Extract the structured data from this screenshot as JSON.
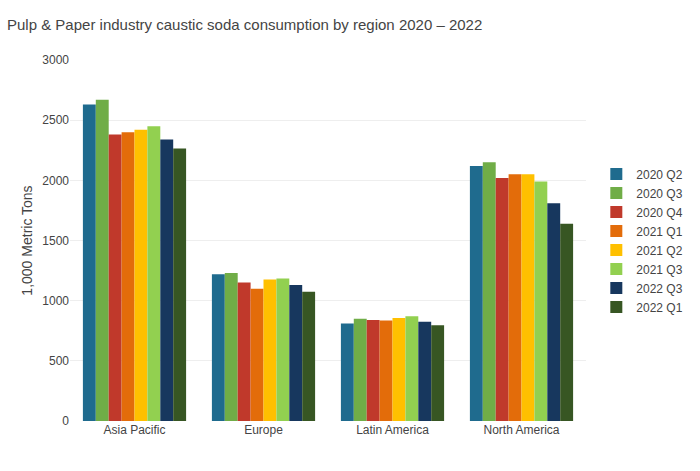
{
  "chart_data": {
    "type": "bar",
    "title": "Pulp & Paper industry caustic soda consumption by region 2020 – 2022",
    "ylabel": "1,000 Metric Tons",
    "categories": [
      "Asia Pacific",
      "Europe",
      "Latin America",
      "North America"
    ],
    "series": [
      {
        "name": "2020 Q2",
        "color": "#1f6b8e",
        "values": [
          2630,
          1220,
          810,
          2120
        ]
      },
      {
        "name": "2020 Q3",
        "color": "#70ad47",
        "values": [
          2670,
          1230,
          850,
          2150
        ]
      },
      {
        "name": "2020 Q4",
        "color": "#c0392b",
        "values": [
          2380,
          1150,
          840,
          2020
        ]
      },
      {
        "name": "2021 Q1",
        "color": "#e36c0a",
        "values": [
          2400,
          1100,
          835,
          2050
        ]
      },
      {
        "name": "2021 Q2",
        "color": "#ffc000",
        "values": [
          2420,
          1175,
          855,
          2050
        ]
      },
      {
        "name": "2021 Q3",
        "color": "#92d050",
        "values": [
          2450,
          1185,
          870,
          1990
        ]
      },
      {
        "name": "2022 Q3",
        "color": "#17375e",
        "values": [
          2340,
          1130,
          825,
          1810
        ]
      },
      {
        "name": "2022 Q1",
        "color": "#375623",
        "values": [
          2265,
          1075,
          795,
          1640
        ]
      }
    ],
    "ylim": [
      0,
      3000
    ],
    "yticks": [
      0,
      500,
      1000,
      1500,
      2000,
      2500,
      3000
    ],
    "grid": true,
    "legend": "right"
  }
}
